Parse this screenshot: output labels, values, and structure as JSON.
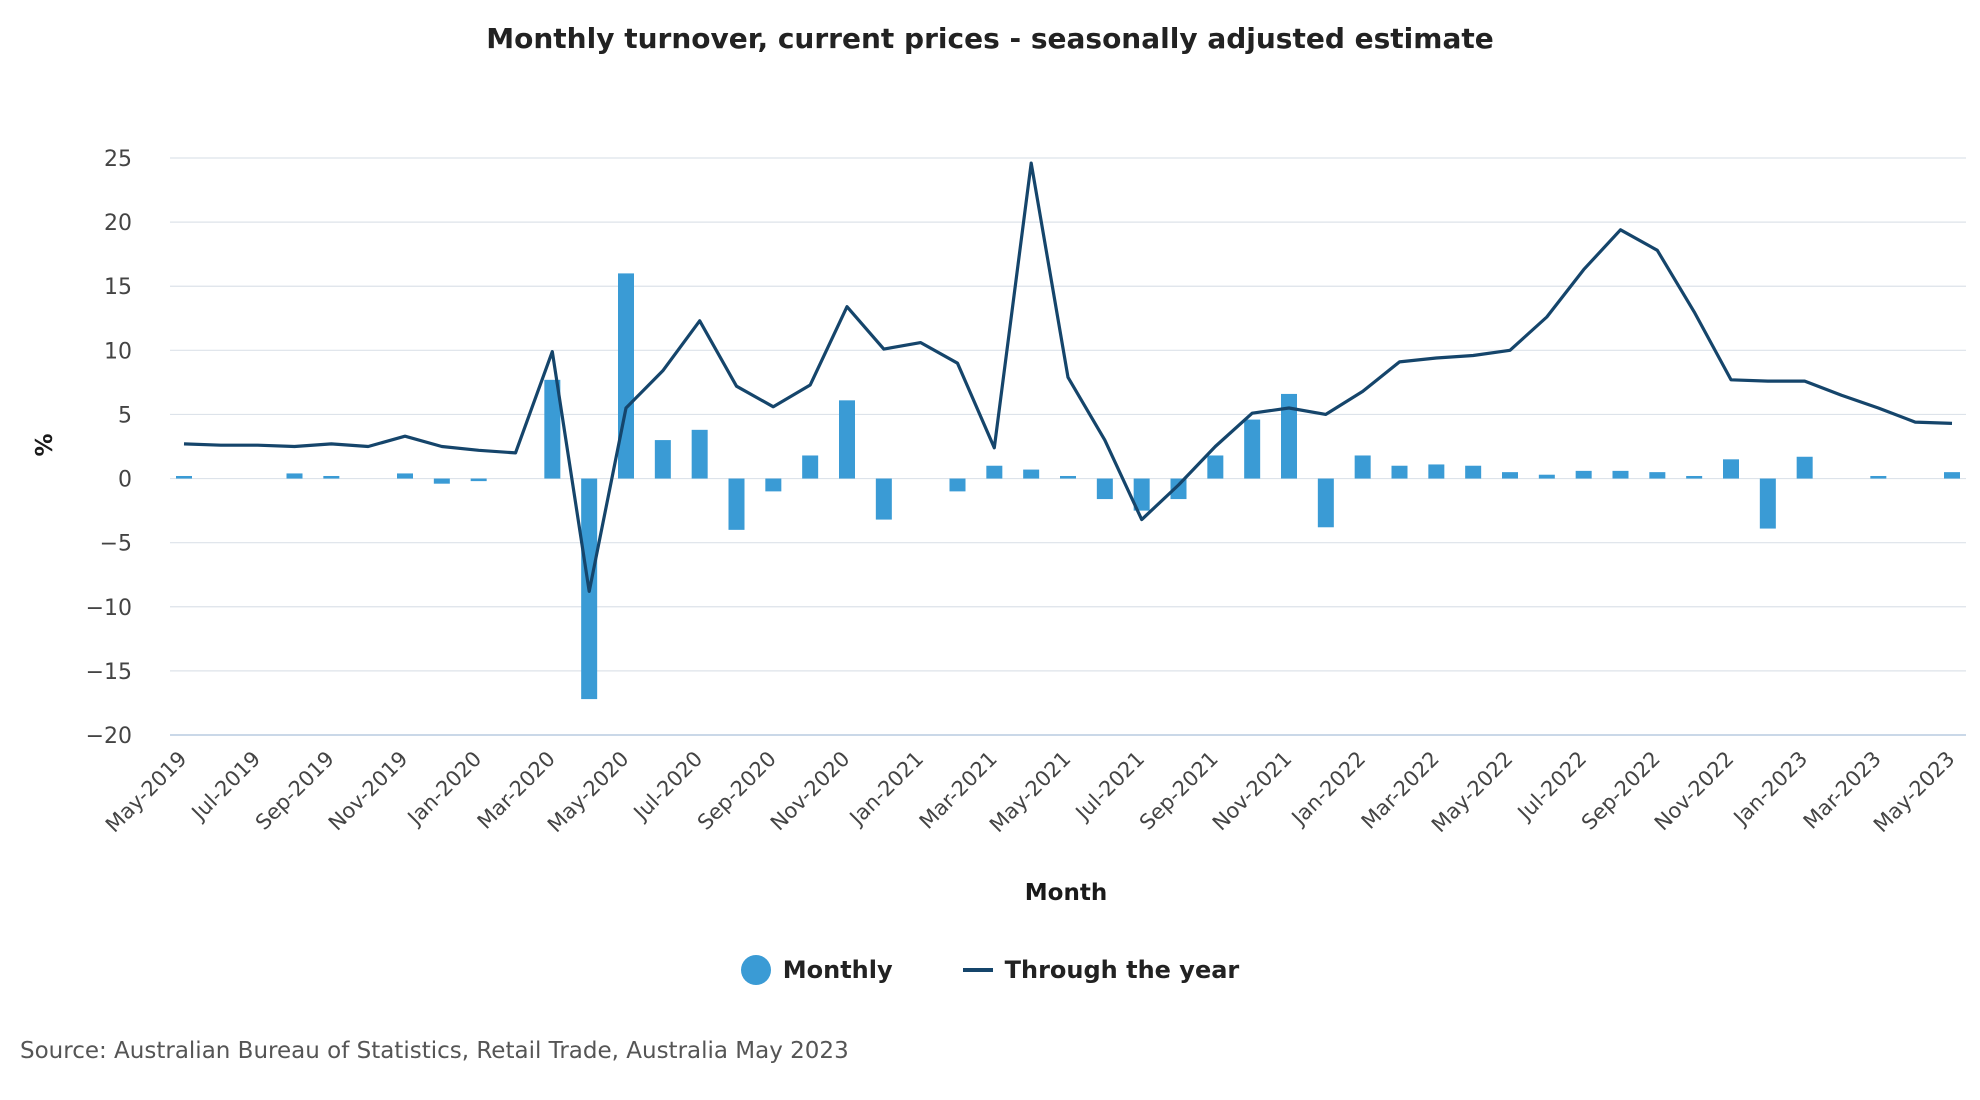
{
  "chart_data": {
    "type": "bar",
    "title": "Monthly turnover, current prices - seasonally adjusted estimate",
    "xlabel": "Month",
    "ylabel": "%",
    "ylim": [
      -20,
      25
    ],
    "yticks": [
      25,
      20,
      15,
      10,
      5,
      0,
      -5,
      -10,
      -15,
      -20
    ],
    "ytick_labels": [
      "25",
      "20",
      "15",
      "10",
      "5",
      "0",
      "−5",
      "−10",
      "−15",
      "−20"
    ],
    "grid": true,
    "legend_position": "bottom",
    "categories": [
      "May-2019",
      "Jun-2019",
      "Jul-2019",
      "Aug-2019",
      "Sep-2019",
      "Oct-2019",
      "Nov-2019",
      "Dec-2019",
      "Jan-2020",
      "Feb-2020",
      "Mar-2020",
      "Apr-2020",
      "May-2020",
      "Jun-2020",
      "Jul-2020",
      "Aug-2020",
      "Sep-2020",
      "Oct-2020",
      "Nov-2020",
      "Dec-2020",
      "Jan-2021",
      "Feb-2021",
      "Mar-2021",
      "Apr-2021",
      "May-2021",
      "Jun-2021",
      "Jul-2021",
      "Aug-2021",
      "Sep-2021",
      "Oct-2021",
      "Nov-2021",
      "Dec-2021",
      "Jan-2022",
      "Feb-2022",
      "Mar-2022",
      "Apr-2022",
      "May-2022",
      "Jun-2022",
      "Jul-2022",
      "Aug-2022",
      "Sep-2022",
      "Oct-2022",
      "Nov-2022",
      "Dec-2022",
      "Jan-2023",
      "Feb-2023",
      "Mar-2023",
      "Apr-2023",
      "May-2023"
    ],
    "x_tick_labels": [
      "May-2019",
      "Jul-2019",
      "Sep-2019",
      "Nov-2019",
      "Jan-2020",
      "Mar-2020",
      "May-2020",
      "Jul-2020",
      "Sep-2020",
      "Nov-2020",
      "Jan-2021",
      "Mar-2021",
      "May-2021",
      "Jul-2021",
      "Sep-2021",
      "Nov-2021",
      "Jan-2022",
      "Mar-2022",
      "May-2022",
      "Jul-2022",
      "Sep-2022",
      "Nov-2022",
      "Jan-2023",
      "Mar-2023",
      "May-2023"
    ],
    "series": [
      {
        "name": "Monthly",
        "type": "bar",
        "color": "#3a9bd5",
        "values": [
          0.2,
          0.0,
          0.0,
          0.4,
          0.2,
          0.0,
          0.4,
          -0.4,
          -0.2,
          0.0,
          7.7,
          -17.2,
          16.0,
          3.0,
          3.8,
          -4.0,
          -1.0,
          1.8,
          6.1,
          -3.2,
          0.0,
          -1.0,
          1.0,
          0.7,
          0.2,
          -1.6,
          -2.5,
          -1.6,
          1.8,
          4.6,
          6.6,
          -3.8,
          1.8,
          1.0,
          1.1,
          1.0,
          0.5,
          0.3,
          0.6,
          0.6,
          0.5,
          0.2,
          1.5,
          -3.9,
          1.7,
          0.0,
          0.2,
          0.0,
          0.5
        ]
      },
      {
        "name": "Through the year",
        "type": "line",
        "color": "#15456b",
        "values": [
          2.7,
          2.6,
          2.6,
          2.5,
          2.7,
          2.5,
          3.3,
          2.5,
          2.2,
          2.0,
          9.9,
          -8.8,
          5.5,
          8.4,
          12.3,
          7.2,
          5.6,
          7.3,
          13.4,
          10.1,
          10.6,
          9.0,
          2.4,
          24.6,
          7.9,
          3.0,
          -3.2,
          -0.5,
          2.5,
          5.1,
          5.5,
          5.0,
          6.8,
          9.1,
          9.4,
          9.6,
          10.0,
          12.6,
          16.3,
          19.4,
          17.8,
          13.0,
          7.7,
          7.6,
          7.6,
          6.5,
          5.5,
          4.4,
          4.3
        ]
      }
    ]
  },
  "legend": {
    "monthly_label": "Monthly",
    "through_year_label": "Through the year"
  },
  "footer": {
    "source": "Source: Australian Bureau of Statistics, Retail Trade, Australia May 2023"
  }
}
